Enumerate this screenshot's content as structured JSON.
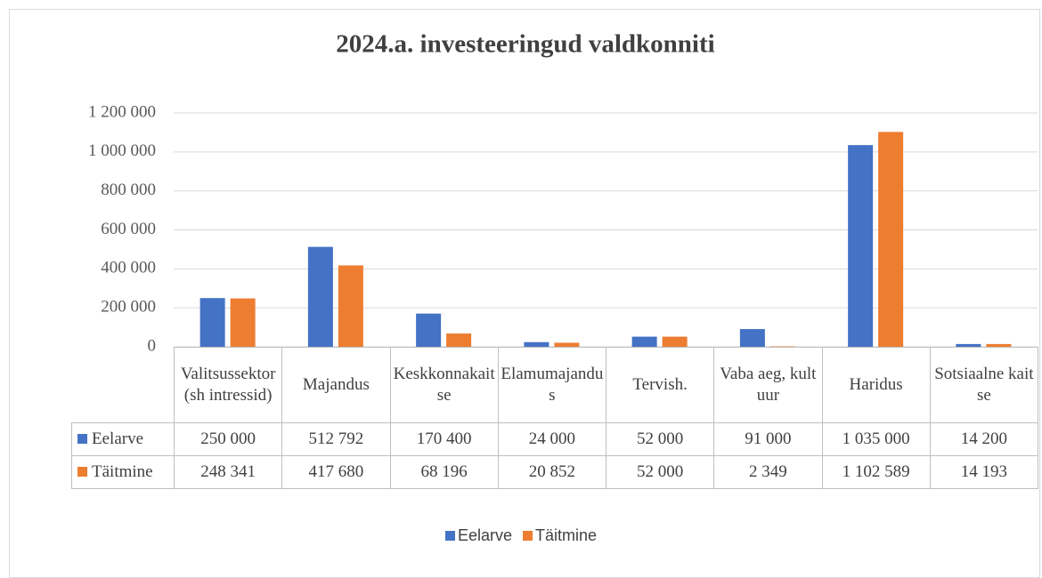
{
  "chart_data": {
    "type": "bar",
    "title": "2024.a. investeeringud valdkonniti",
    "categories": [
      "Valitsussektor (sh intressid)",
      "Majandus",
      "Keskkonnakaitse",
      "Elamumajandus",
      "Tervish.",
      "Vaba aeg, kultuur",
      "Haridus",
      "Sotsiaalne kaitse"
    ],
    "series": [
      {
        "name": "Eelarve",
        "color": "#4472c4",
        "values": [
          250000,
          512792,
          170400,
          24000,
          52000,
          91000,
          1035000,
          14200
        ],
        "value_labels": [
          "250 000",
          "512 792",
          "170 400",
          "24 000",
          "52 000",
          "91 000",
          "1 035 000",
          "14 200"
        ]
      },
      {
        "name": "Täitmine",
        "color": "#ed7d31",
        "values": [
          248341,
          417680,
          68196,
          20852,
          52000,
          2349,
          1102589,
          14193
        ],
        "value_labels": [
          "248 341",
          "417 680",
          "68 196",
          "20 852",
          "52 000",
          "2 349",
          "1 102 589",
          "14 193"
        ]
      }
    ],
    "ylim": [
      0,
      1200000
    ],
    "yticks": [
      0,
      {
        "value": 200000,
        "label": "200 000"
      },
      {
        "value": 400000,
        "label": "400 000"
      },
      {
        "value": 600000,
        "label": "600 000"
      },
      {
        "value": 800000,
        "label": "800 000"
      },
      {
        "value": 1000000,
        "label": "1 000 000"
      },
      {
        "value": 1200000,
        "label": "1 200 000"
      }
    ],
    "grid": true,
    "legend": "bottom"
  }
}
